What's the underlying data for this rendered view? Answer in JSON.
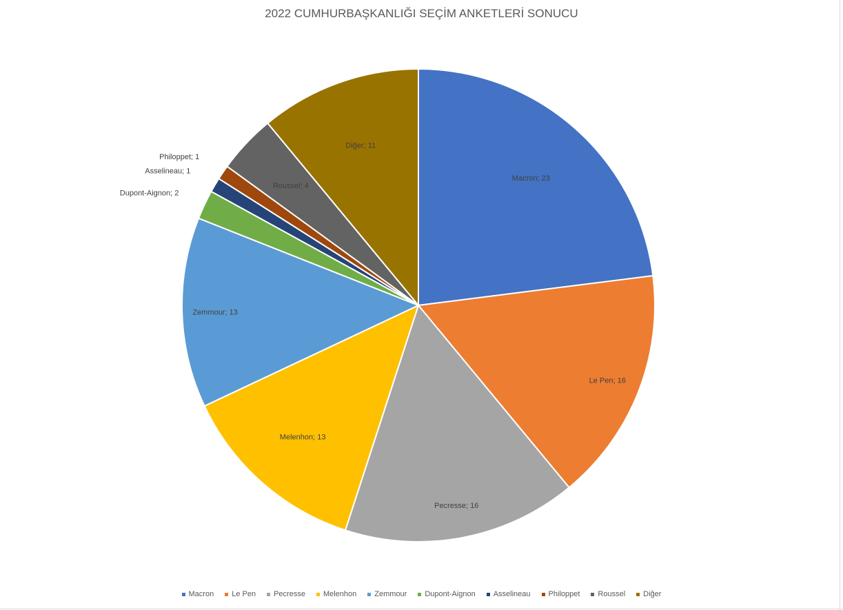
{
  "chart_data": {
    "type": "pie",
    "title": "2022 CUMHURBAŞKANLIĞI SEÇİM ANKETLERİ SONUCU",
    "legend_position": "bottom",
    "slices": [
      {
        "name": "Macron",
        "value": 23,
        "label": "Macron; 23",
        "color": "#4472C4"
      },
      {
        "name": "Le Pen",
        "value": 16,
        "label": "Le Pen; 16",
        "color": "#ED7D31"
      },
      {
        "name": "Pecresse",
        "value": 16,
        "label": "Pecresse; 16",
        "color": "#A5A5A5"
      },
      {
        "name": "Melenhon",
        "value": 13,
        "label": "Melenhon; 13",
        "color": "#FFC000"
      },
      {
        "name": "Zemmour",
        "value": 13,
        "label": "Zemmour; 13",
        "color": "#5B9BD5"
      },
      {
        "name": "Dupont-Aignon",
        "value": 2,
        "label": "Dupont-Aignon; 2",
        "color": "#70AD47"
      },
      {
        "name": "Asselineau",
        "value": 1,
        "label": "Asselineau; 1",
        "color": "#264478"
      },
      {
        "name": "Philoppet",
        "value": 1,
        "label": "Philoppet; 1",
        "color": "#9E480E"
      },
      {
        "name": "Roussel",
        "value": 4,
        "label": "Roussel; 4",
        "color": "#636363"
      },
      {
        "name": "Diğer",
        "value": 11,
        "label": "Diğer; 11",
        "color": "#997300"
      }
    ]
  }
}
